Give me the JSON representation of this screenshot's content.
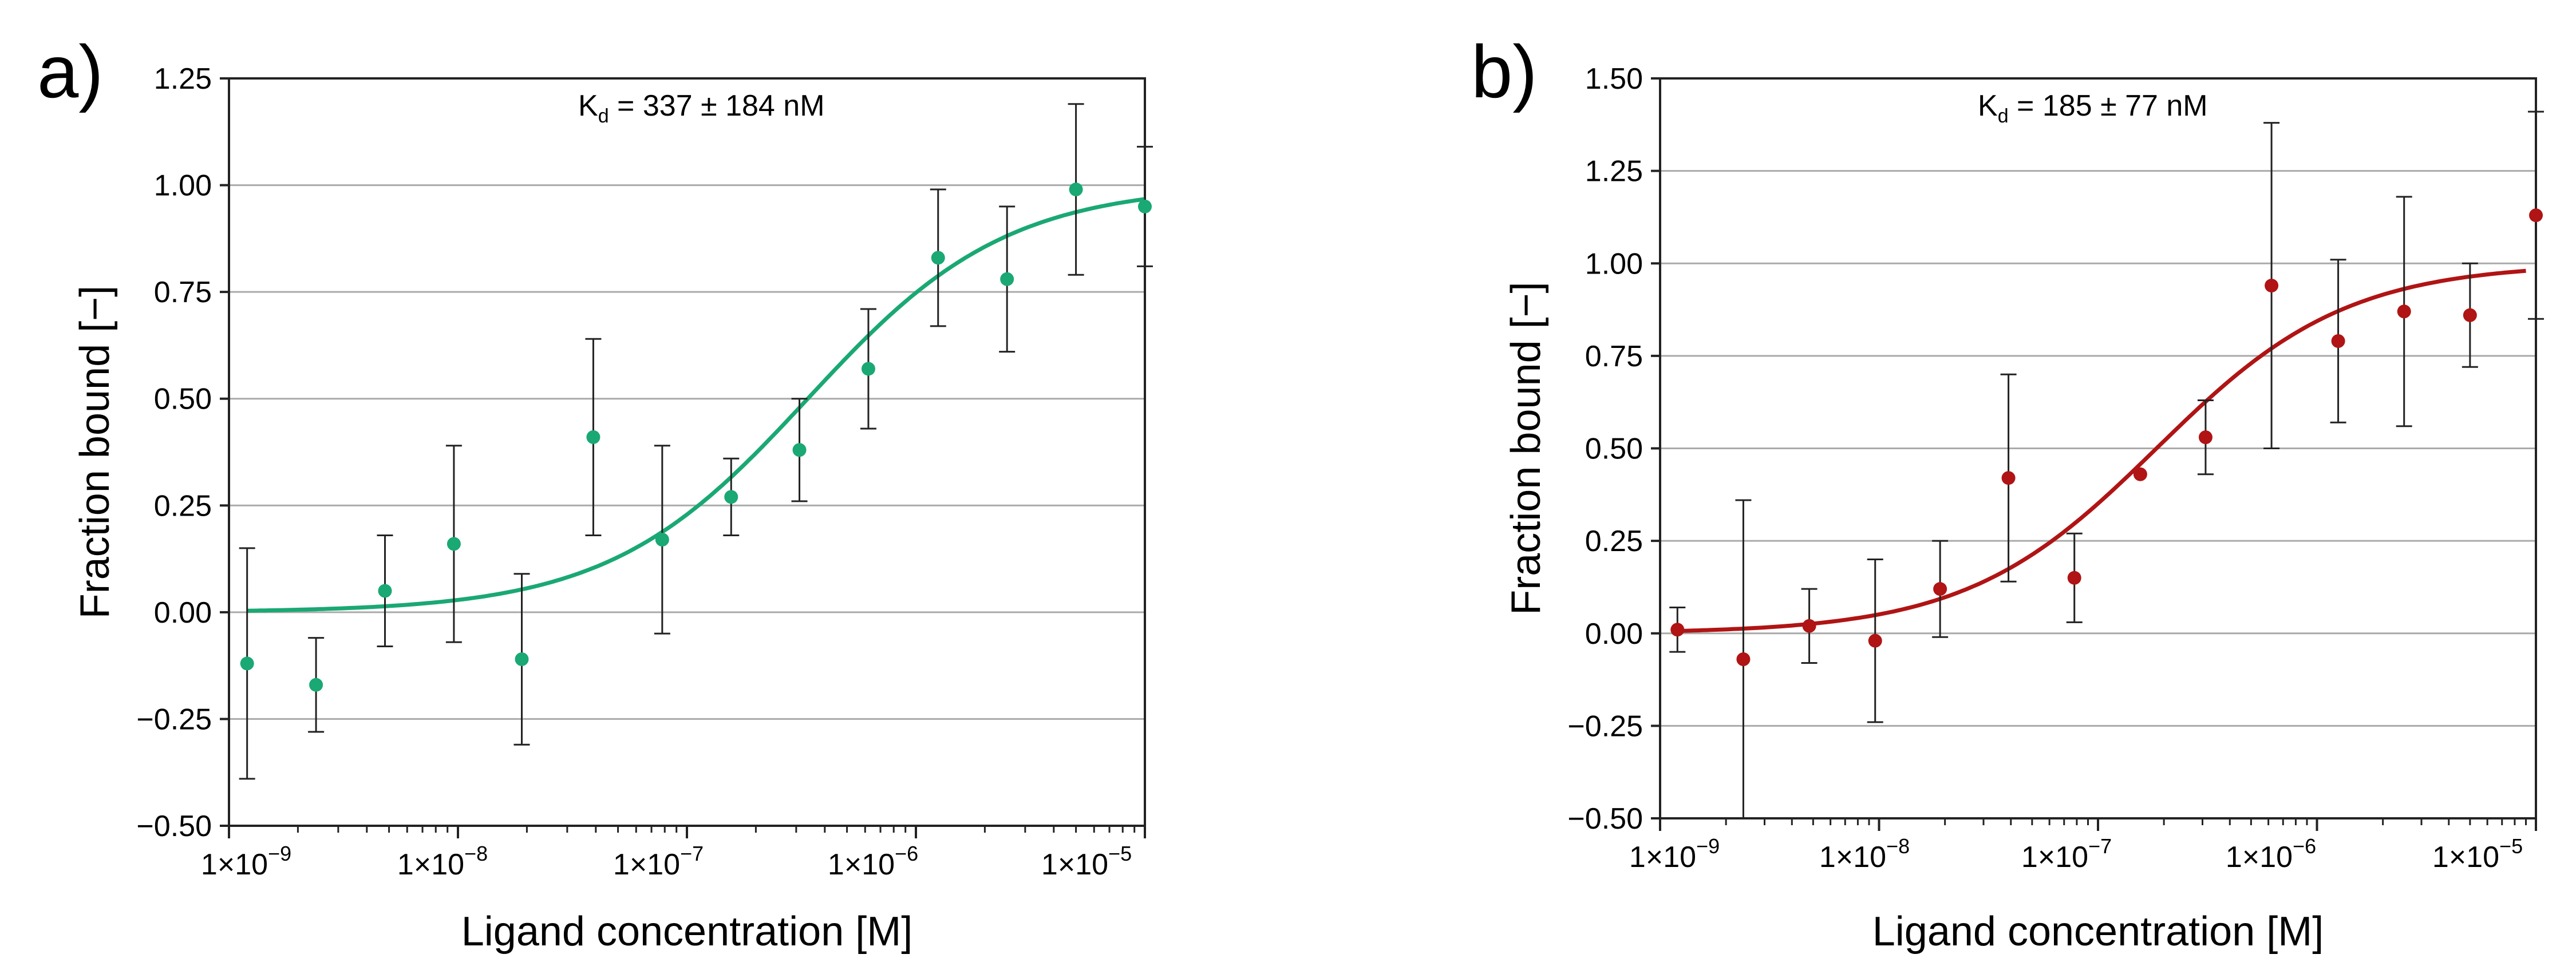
{
  "chart_data": [
    {
      "type": "scatter",
      "panel_label": "a)",
      "color": "#1aa874",
      "xscale": "log",
      "xlim": [
        1e-09,
        1e-05
      ],
      "ylim": [
        -0.5,
        1.25
      ],
      "yticks": [
        -0.5,
        -0.25,
        0.0,
        0.25,
        0.5,
        0.75,
        1.0,
        1.25
      ],
      "ytick_labels": [
        "−0.50",
        "−0.25",
        "0.00",
        "0.25",
        "0.50",
        "0.75",
        "1.00",
        "1.25"
      ],
      "xtick_labels": [
        "1×10",
        "1×10",
        "1×10",
        "1×10",
        "1×10"
      ],
      "xtick_exponents": [
        "−9",
        "−8",
        "−7",
        "−6",
        "−5"
      ],
      "xlabel": "Ligand concentration [M]",
      "ylabel": "Fraction bound [−]",
      "grid": "horizontal",
      "annotation": {
        "prefix": "K",
        "subscript": "d",
        "text": " = 337 ± 184 nM"
      },
      "fit": {
        "model": "hill",
        "kd": 3.37e-07,
        "bottom": 0.0,
        "top": 1.0,
        "x_range": [
          1.2e-09,
          1e-05
        ]
      },
      "points": [
        {
          "x": 1.2e-09,
          "y": -0.12,
          "err": 0.27
        },
        {
          "x": 2.4e-09,
          "y": -0.17,
          "err": 0.11
        },
        {
          "x": 4.8e-09,
          "y": 0.05,
          "err": 0.13
        },
        {
          "x": 9.6e-09,
          "y": 0.16,
          "err": 0.23
        },
        {
          "x": 1.9e-08,
          "y": -0.11,
          "err": 0.2
        },
        {
          "x": 3.9e-08,
          "y": 0.41,
          "err": 0.23
        },
        {
          "x": 7.8e-08,
          "y": 0.17,
          "err": 0.22
        },
        {
          "x": 1.56e-07,
          "y": 0.27,
          "err": 0.09
        },
        {
          "x": 3.1e-07,
          "y": 0.38,
          "err": 0.12
        },
        {
          "x": 6.2e-07,
          "y": 0.57,
          "err": 0.14
        },
        {
          "x": 1.25e-06,
          "y": 0.83,
          "err": 0.16
        },
        {
          "x": 2.5e-06,
          "y": 0.78,
          "err": 0.17
        },
        {
          "x": 5e-06,
          "y": 0.99,
          "err": 0.2
        },
        {
          "x": 1e-05,
          "y": 0.95,
          "err": 0.14
        }
      ]
    },
    {
      "type": "scatter",
      "panel_label": "b)",
      "color": "#b01414",
      "xscale": "log",
      "xlim": [
        1e-09,
        1e-05
      ],
      "ylim": [
        -0.5,
        1.5
      ],
      "yticks": [
        -0.5,
        -0.25,
        0.0,
        0.25,
        0.5,
        0.75,
        1.0,
        1.25,
        1.5
      ],
      "ytick_labels": [
        "−0.50",
        "−0.25",
        "0.00",
        "0.25",
        "0.50",
        "0.75",
        "1.00",
        "1.25",
        "1.50"
      ],
      "xtick_labels": [
        "1×10",
        "1×10",
        "1×10",
        "1×10",
        "1×10"
      ],
      "xtick_exponents": [
        "−9",
        "−8",
        "−7",
        "−6",
        "−5"
      ],
      "xlabel": "Ligand concentration [M]",
      "ylabel": "Fraction bound [−]",
      "grid": "horizontal",
      "annotation": {
        "prefix": "K",
        "subscript": "d",
        "text": " = 185 ± 77 nM"
      },
      "fit": {
        "model": "hill",
        "kd": 1.85e-07,
        "bottom": 0.0,
        "top": 1.0,
        "x_range": [
          1.2e-09,
          9e-06
        ]
      },
      "points": [
        {
          "x": 1.2e-09,
          "y": 0.01,
          "err": 0.06
        },
        {
          "x": 2.4e-09,
          "y": -0.07,
          "err": 0.43
        },
        {
          "x": 4.8e-09,
          "y": 0.02,
          "err": 0.1
        },
        {
          "x": 9.6e-09,
          "y": -0.02,
          "err": 0.22
        },
        {
          "x": 1.9e-08,
          "y": 0.12,
          "err": 0.13
        },
        {
          "x": 3.9e-08,
          "y": 0.42,
          "err": 0.28
        },
        {
          "x": 7.8e-08,
          "y": 0.15,
          "err": 0.12
        },
        {
          "x": 1.56e-07,
          "y": 0.43,
          "err": 0.0
        },
        {
          "x": 3.1e-07,
          "y": 0.53,
          "err": 0.1
        },
        {
          "x": 6.2e-07,
          "y": 0.94,
          "err": 0.44
        },
        {
          "x": 1.25e-06,
          "y": 0.79,
          "err": 0.22
        },
        {
          "x": 2.5e-06,
          "y": 0.87,
          "err": 0.31
        },
        {
          "x": 5e-06,
          "y": 0.86,
          "err": 0.14
        },
        {
          "x": 1e-05,
          "y": 1.13,
          "err": 0.28
        }
      ]
    }
  ]
}
